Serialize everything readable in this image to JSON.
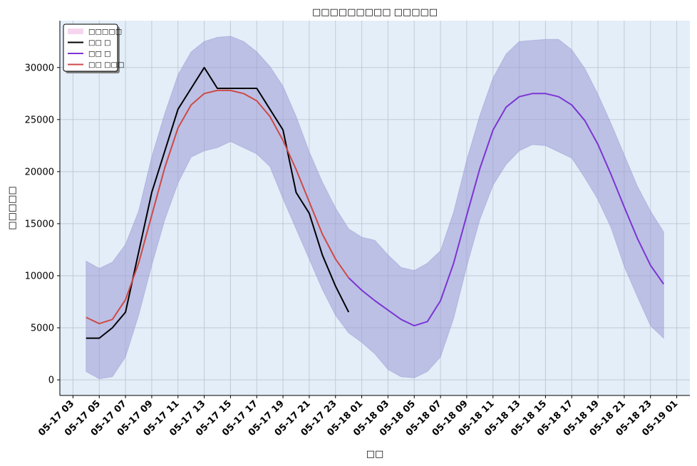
{
  "chart_data": {
    "type": "line",
    "title": "□□□□□□□□□ □□□□□",
    "xlabel": "□□",
    "ylabel": "□□□□□",
    "x_unit": "hour",
    "xlim": [
      "05-17 02:00",
      "05-19 02:00"
    ],
    "ylim": [
      -1500,
      34500
    ],
    "grid": true,
    "legend_position": "top-left",
    "x_ticks": [
      "05-17 03",
      "05-17 05",
      "05-17 07",
      "05-17 09",
      "05-17 11",
      "05-17 13",
      "05-17 15",
      "05-17 17",
      "05-17 19",
      "05-17 21",
      "05-17 23",
      "05-18 01",
      "05-18 03",
      "05-18 05",
      "05-18 07",
      "05-18 09",
      "05-18 11",
      "05-18 13",
      "05-18 15",
      "05-18 17",
      "05-18 19",
      "05-18 21",
      "05-18 23",
      "05-19 01"
    ],
    "y_ticks": [
      0,
      5000,
      10000,
      15000,
      20000,
      25000,
      30000
    ],
    "legend": [
      {
        "label": "□□□□□",
        "kind": "band",
        "color": "#f6d6ef"
      },
      {
        "label": "□□ □",
        "kind": "line",
        "color": "#000000"
      },
      {
        "label": "□□ □",
        "kind": "line",
        "color": "#7b35d3"
      },
      {
        "label": "□□ □□□",
        "kind": "line",
        "color": "#cd4a45"
      }
    ],
    "band": {
      "color": "#9b9bd6",
      "x": [
        "05-17 04:00",
        "05-17 05:00",
        "05-17 06:00",
        "05-17 07:00",
        "05-17 08:00",
        "05-17 09:00",
        "05-17 10:00",
        "05-17 11:00",
        "05-17 12:00",
        "05-17 13:00",
        "05-17 14:00",
        "05-17 15:00",
        "05-17 16:00",
        "05-17 17:00",
        "05-17 18:00",
        "05-17 19:00",
        "05-17 20:00",
        "05-17 21:00",
        "05-17 22:00",
        "05-17 23:00",
        "05-18 00:00",
        "05-18 01:00",
        "05-18 02:00",
        "05-18 03:00",
        "05-18 04:00",
        "05-18 05:00",
        "05-18 06:00",
        "05-18 07:00",
        "05-18 08:00",
        "05-18 09:00",
        "05-18 10:00",
        "05-18 11:00",
        "05-18 12:00",
        "05-18 13:00",
        "05-18 14:00",
        "05-18 15:00",
        "05-18 16:00",
        "05-18 17:00",
        "05-18 18:00",
        "05-18 19:00",
        "05-18 20:00",
        "05-18 21:00",
        "05-18 22:00",
        "05-18 23:00",
        "05-19 00:00"
      ],
      "upper": [
        11400,
        10700,
        11300,
        13000,
        16200,
        21400,
        25600,
        29300,
        31500,
        32500,
        32900,
        33000,
        32500,
        31500,
        30100,
        28200,
        25300,
        21900,
        19000,
        16500,
        14500,
        13700,
        13400,
        12000,
        10800,
        10500,
        11200,
        12400,
        16100,
        21100,
        25400,
        29000,
        31300,
        32500,
        32600,
        32700,
        32700,
        31700,
        29900,
        27400,
        24600,
        21600,
        18600,
        16200,
        14200
      ],
      "lower": [
        800,
        100,
        300,
        2200,
        6200,
        11000,
        15400,
        18900,
        21400,
        22000,
        22300,
        22900,
        22300,
        21700,
        20500,
        17400,
        14500,
        11600,
        8700,
        6200,
        4500,
        3600,
        2500,
        1000,
        300,
        200,
        800,
        2200,
        5900,
        10900,
        15400,
        18700,
        20700,
        22000,
        22600,
        22500,
        21900,
        21300,
        19400,
        17300,
        14600,
        10900,
        8000,
        5200,
        4000
      ]
    },
    "series": [
      {
        "name": "□□ □",
        "color": "#000000",
        "x": [
          "05-17 04:00",
          "05-17 05:00",
          "05-17 06:00",
          "05-17 07:00",
          "05-17 09:00",
          "05-17 11:00",
          "05-17 13:00",
          "05-17 14:00",
          "05-17 15:00",
          "05-17 16:00",
          "05-17 17:00",
          "05-17 19:00",
          "05-17 20:00",
          "05-17 21:00",
          "05-17 22:00",
          "05-17 23:00",
          "05-18 00:00"
        ],
        "values": [
          4000,
          4000,
          5000,
          6500,
          18000,
          26000,
          30000,
          28000,
          28000,
          28000,
          28000,
          24000,
          18000,
          16000,
          12000,
          9000,
          6500
        ]
      },
      {
        "name": "□□ □",
        "color": "#7b35d3",
        "x": [
          "05-18 00:00",
          "05-18 01:00",
          "05-18 02:00",
          "05-18 03:00",
          "05-18 04:00",
          "05-18 05:00",
          "05-18 06:00",
          "05-18 07:00",
          "05-18 08:00",
          "05-18 09:00",
          "05-18 10:00",
          "05-18 11:00",
          "05-18 12:00",
          "05-18 13:00",
          "05-18 14:00",
          "05-18 15:00",
          "05-18 16:00",
          "05-18 17:00",
          "05-18 18:00",
          "05-18 19:00",
          "05-18 20:00",
          "05-18 21:00",
          "05-18 22:00",
          "05-18 23:00",
          "05-19 00:00"
        ],
        "values": [
          9800,
          8600,
          7600,
          6700,
          5800,
          5200,
          5600,
          7600,
          11200,
          15800,
          20300,
          24000,
          26200,
          27200,
          27500,
          27500,
          27200,
          26400,
          24900,
          22600,
          19700,
          16600,
          13600,
          11000,
          9200
        ]
      },
      {
        "name": "□□ □□□",
        "color": "#cd4a45",
        "x": [
          "05-17 04:00",
          "05-17 05:00",
          "05-17 06:00",
          "05-17 07:00",
          "05-17 08:00",
          "05-17 09:00",
          "05-17 10:00",
          "05-17 11:00",
          "05-17 12:00",
          "05-17 13:00",
          "05-17 14:00",
          "05-17 15:00",
          "05-17 16:00",
          "05-17 17:00",
          "05-17 18:00",
          "05-17 19:00",
          "05-17 20:00",
          "05-17 21:00",
          "05-17 22:00",
          "05-17 23:00",
          "05-18 00:00"
        ],
        "values": [
          6000,
          5400,
          5800,
          7700,
          11200,
          15800,
          20400,
          24200,
          26400,
          27500,
          27800,
          27800,
          27500,
          26800,
          25300,
          23000,
          20200,
          17100,
          14000,
          11600,
          9800
        ]
      }
    ]
  }
}
